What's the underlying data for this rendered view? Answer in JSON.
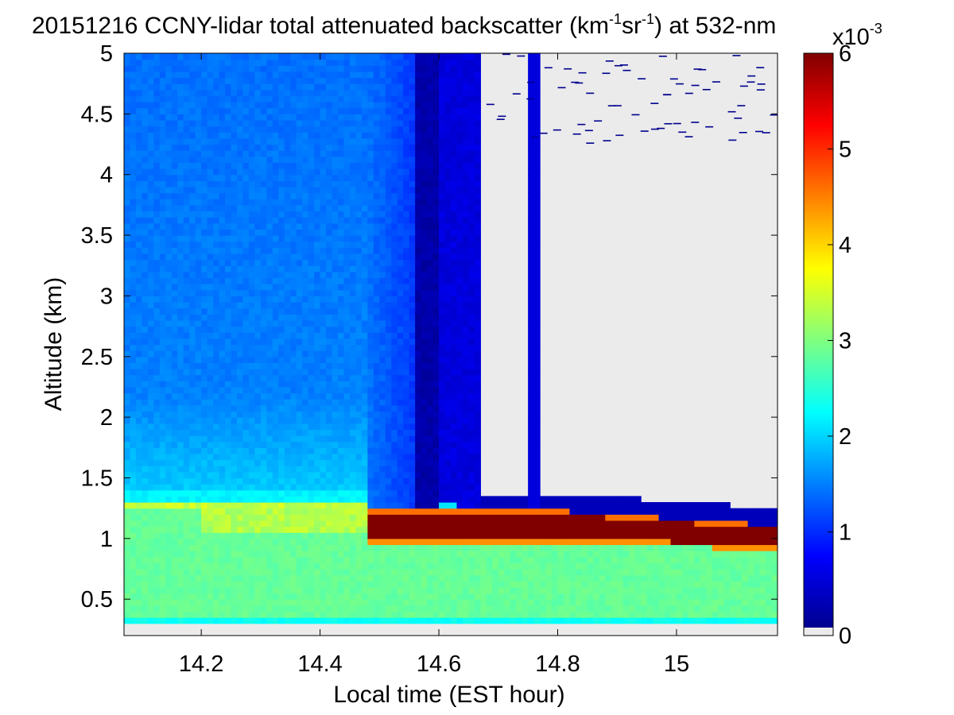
{
  "chart_data": {
    "type": "heatmap",
    "title": {
      "prefix": "20151216 CCNY-lidar total attenuated backscatter (km",
      "sup1": "-1",
      "mid": "sr",
      "sup2": "-1",
      "suffix": ") at 532-nm"
    },
    "xlabel": "Local time (EST hour)",
    "ylabel": "Altitude (km)",
    "xlim": [
      14.07,
      15.17
    ],
    "ylim": [
      0.2,
      5.0
    ],
    "x_ticks": [
      "14.2",
      "14.4",
      "14.6",
      "14.8",
      "15"
    ],
    "y_ticks": [
      "0.5",
      "1",
      "1.5",
      "2",
      "2.5",
      "3",
      "3.5",
      "4",
      "4.5",
      "5"
    ],
    "colorbar": {
      "colormap": "jet",
      "range": [
        0,
        6
      ],
      "ticks": [
        "0",
        "1",
        "2",
        "3",
        "4",
        "5",
        "6"
      ],
      "exponent_label": {
        "base": "x10",
        "sup": "-3"
      },
      "no_data_color": "#ebebeb"
    },
    "regions": {
      "boundary_layer_top_km": 1.3,
      "cloud_base_km": 1.0,
      "cloud_top_km": 1.2,
      "cloud_start_hour": 14.48,
      "attenuated_after_hour": 14.67,
      "clear_column_hour": 14.76,
      "min_altitude_km": 0.3
    }
  }
}
